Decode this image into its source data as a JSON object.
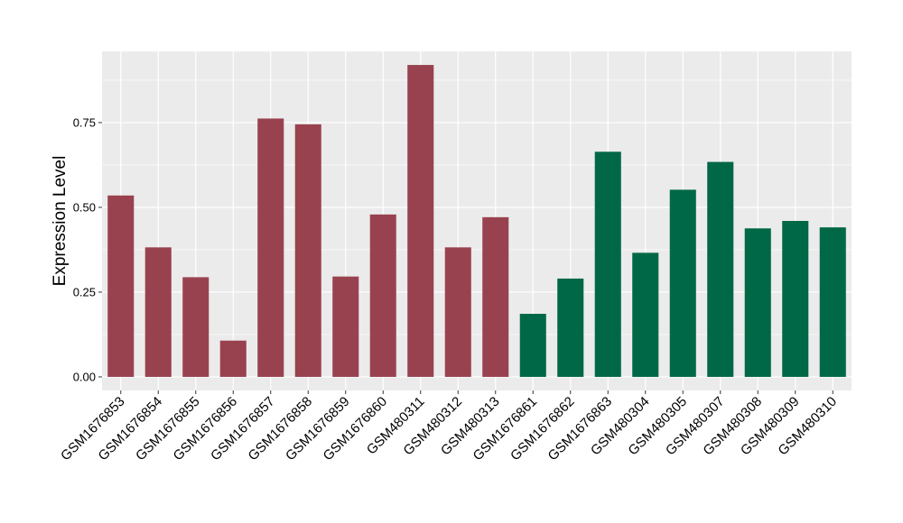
{
  "chart_data": {
    "type": "bar",
    "title": "",
    "xlabel": "",
    "ylabel": "Expression Level",
    "ylim": [
      -0.04,
      0.96
    ],
    "yticks": [
      0.0,
      0.25,
      0.5,
      0.75
    ],
    "ytick_labels": [
      "0.00",
      "0.25",
      "0.50",
      "0.75"
    ],
    "grid": true,
    "legend": "none",
    "panel_background": "#ebebeb",
    "grid_color": "#ffffff",
    "categories": [
      "GSM1676853",
      "GSM1676854",
      "GSM1676855",
      "GSM1676856",
      "GSM1676857",
      "GSM1676858",
      "GSM1676859",
      "GSM1676860",
      "GSM480311",
      "GSM480312",
      "GSM480313",
      "GSM1676861",
      "GSM1676862",
      "GSM1676863",
      "GSM480304",
      "GSM480305",
      "GSM480307",
      "GSM480308",
      "GSM480309",
      "GSM480310"
    ],
    "values": [
      0.535,
      0.382,
      0.294,
      0.107,
      0.762,
      0.745,
      0.296,
      0.479,
      0.92,
      0.382,
      0.471,
      0.186,
      0.29,
      0.664,
      0.366,
      0.552,
      0.634,
      0.438,
      0.46,
      0.441
    ],
    "bar_colors": [
      "#99424f",
      "#99424f",
      "#99424f",
      "#99424f",
      "#99424f",
      "#99424f",
      "#99424f",
      "#99424f",
      "#99424f",
      "#99424f",
      "#99424f",
      "#006847",
      "#006847",
      "#006847",
      "#006847",
      "#006847",
      "#006847",
      "#006847",
      "#006847",
      "#006847"
    ]
  }
}
